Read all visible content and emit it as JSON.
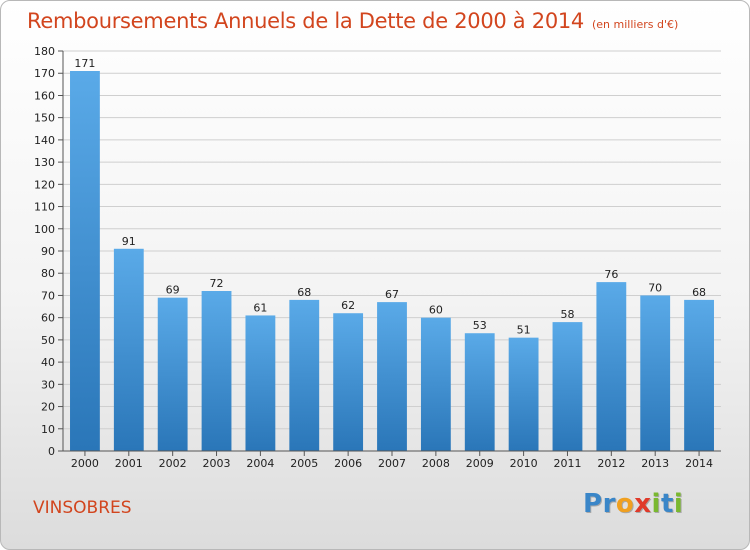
{
  "header": {
    "title": "Remboursements Annuels de la Dette de 2000 à 2014",
    "subtitle": "(en milliers d'€)"
  },
  "footer": {
    "commune": "VINSOBRES",
    "logo_letters": [
      {
        "ch": "P",
        "color": "#3a86c8"
      },
      {
        "ch": "r",
        "color": "#3a86c8"
      },
      {
        "ch": "o",
        "color": "#f0a020"
      },
      {
        "ch": "x",
        "color": "#e03a2a"
      },
      {
        "ch": "i",
        "color": "#7ab830"
      },
      {
        "ch": "t",
        "color": "#3a86c8"
      },
      {
        "ch": "i",
        "color": "#7ab830"
      }
    ]
  },
  "chart_data": {
    "type": "bar",
    "title": "Remboursements Annuels de la Dette de 2000 à 2014",
    "subtitle": "(en milliers d'€)",
    "categories": [
      "2000",
      "2001",
      "2002",
      "2003",
      "2004",
      "2005",
      "2006",
      "2007",
      "2008",
      "2009",
      "2010",
      "2011",
      "2012",
      "2013",
      "2014"
    ],
    "values": [
      171,
      91,
      69,
      72,
      61,
      68,
      62,
      67,
      60,
      53,
      51,
      58,
      76,
      70,
      68
    ],
    "ylim": [
      0,
      180
    ],
    "yticks": [
      0,
      10,
      20,
      30,
      40,
      50,
      60,
      70,
      80,
      90,
      100,
      110,
      120,
      130,
      140,
      150,
      160,
      170,
      180
    ],
    "grid": true,
    "legend": "none",
    "colors": {
      "bar_top": "#5aaae8",
      "bar_bottom": "#2a76b8",
      "grid": "#cfcfcf",
      "axis": "#555555"
    }
  }
}
